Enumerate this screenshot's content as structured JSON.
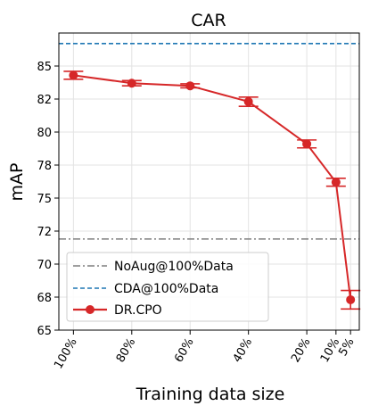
{
  "chart_data": {
    "type": "line",
    "title": "CAR",
    "xlabel": "Training data size",
    "ylabel": "mAP",
    "x_ticks": [
      {
        "label": "100%",
        "value": 100
      },
      {
        "label": "80%",
        "value": 80
      },
      {
        "label": "60%",
        "value": 60
      },
      {
        "label": "40%",
        "value": 40
      },
      {
        "label": "20%",
        "value": 20
      },
      {
        "label": "10%",
        "value": 10
      },
      {
        "label": "5%",
        "value": 5
      }
    ],
    "xlim": [
      105,
      2
    ],
    "ylim": [
      65,
      87.5
    ],
    "y_ticks": [
      {
        "label": "65",
        "value": 65
      },
      {
        "label": "68",
        "value": 67.5
      },
      {
        "label": "70",
        "value": 70
      },
      {
        "label": "72",
        "value": 72.5
      },
      {
        "label": "75",
        "value": 75
      },
      {
        "label": "78",
        "value": 77.5
      },
      {
        "label": "80",
        "value": 80
      },
      {
        "label": "82",
        "value": 82.5
      },
      {
        "label": "85",
        "value": 85
      }
    ],
    "grid": true,
    "legend_position": "lower-left",
    "reference_lines": [
      {
        "name": "NoAug@100%Data",
        "value": 71.9,
        "color": "#7f7f7f",
        "style": "dashdot"
      },
      {
        "name": "CDA@100%Data",
        "value": 86.7,
        "color": "#1f77b4",
        "style": "dashed"
      }
    ],
    "series": [
      {
        "name": "DR.CPO",
        "color": "#d62728",
        "points": [
          {
            "x": 100,
            "y": 84.3,
            "err": 0.3
          },
          {
            "x": 80,
            "y": 83.7,
            "err": 0.2
          },
          {
            "x": 60,
            "y": 83.5,
            "err": 0.15
          },
          {
            "x": 40,
            "y": 82.3,
            "err": 0.35
          },
          {
            "x": 20,
            "y": 79.1,
            "err": 0.3
          },
          {
            "x": 10,
            "y": 76.2,
            "err": 0.3
          },
          {
            "x": 5,
            "y": 67.3,
            "err": 0.7
          }
        ]
      }
    ]
  }
}
